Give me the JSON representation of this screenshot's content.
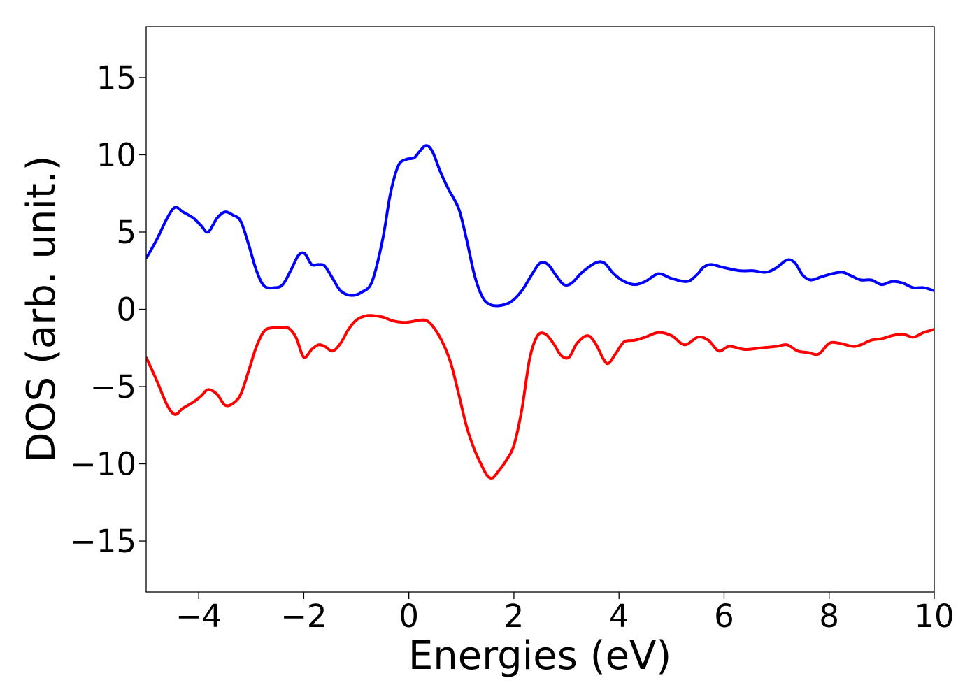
{
  "chart_data": {
    "type": "line",
    "xlabel": "Energies (eV)",
    "ylabel": "DOS (arb. unit.)",
    "xlim": [
      -5,
      10
    ],
    "ylim": [
      -18.3,
      18.3
    ],
    "xticks": [
      -4,
      -2,
      0,
      2,
      4,
      6,
      8,
      10
    ],
    "yticks": [
      -15,
      -10,
      -5,
      0,
      5,
      10,
      15
    ],
    "xtick_labels": [
      "−4",
      "−2",
      "0",
      "2",
      "4",
      "6",
      "8",
      "10"
    ],
    "ytick_labels": [
      "−15",
      "−10",
      "−5",
      "0",
      "5",
      "10",
      "15"
    ],
    "grid": false,
    "series": [
      {
        "color": "#0000ff",
        "x": [
          -5.0,
          -4.8,
          -4.6,
          -4.45,
          -4.3,
          -4.1,
          -3.95,
          -3.82,
          -3.65,
          -3.5,
          -3.35,
          -3.2,
          -3.05,
          -2.9,
          -2.75,
          -2.55,
          -2.4,
          -2.25,
          -2.1,
          -1.98,
          -1.85,
          -1.72,
          -1.6,
          -1.45,
          -1.3,
          -1.1,
          -0.9,
          -0.7,
          -0.5,
          -0.35,
          -0.2,
          -0.05,
          0.1,
          0.2,
          0.33,
          0.45,
          0.6,
          0.75,
          0.95,
          1.1,
          1.25,
          1.4,
          1.55,
          1.75,
          1.95,
          2.15,
          2.35,
          2.5,
          2.65,
          2.8,
          2.95,
          3.1,
          3.3,
          3.55,
          3.72,
          3.9,
          4.1,
          4.3,
          4.5,
          4.75,
          5.0,
          5.3,
          5.5,
          5.6,
          5.75,
          6.0,
          6.3,
          6.55,
          6.8,
          7.0,
          7.2,
          7.35,
          7.5,
          7.65,
          7.85,
          8.05,
          8.25,
          8.4,
          8.6,
          8.8,
          9.0,
          9.2,
          9.4,
          9.6,
          9.8,
          10.0
        ],
        "values": [
          3.3,
          4.5,
          5.9,
          6.6,
          6.3,
          5.9,
          5.4,
          5.0,
          5.9,
          6.3,
          6.1,
          5.7,
          4.2,
          2.5,
          1.5,
          1.4,
          1.6,
          2.5,
          3.5,
          3.6,
          2.9,
          2.9,
          2.8,
          2.0,
          1.2,
          0.9,
          1.1,
          1.8,
          4.5,
          7.5,
          9.3,
          9.7,
          9.8,
          10.2,
          10.6,
          10.2,
          8.9,
          7.8,
          6.5,
          4.5,
          2.2,
          0.8,
          0.3,
          0.25,
          0.5,
          1.2,
          2.3,
          3.0,
          2.9,
          2.2,
          1.6,
          1.7,
          2.4,
          3.0,
          3.0,
          2.3,
          1.8,
          1.6,
          1.8,
          2.3,
          2.0,
          1.8,
          2.3,
          2.7,
          2.9,
          2.7,
          2.5,
          2.5,
          2.4,
          2.7,
          3.2,
          3.0,
          2.2,
          1.9,
          2.1,
          2.3,
          2.4,
          2.2,
          1.9,
          1.9,
          1.6,
          1.8,
          1.7,
          1.4,
          1.4,
          1.2
        ]
      },
      {
        "color": "#ff0000",
        "x": [
          -5.0,
          -4.8,
          -4.6,
          -4.45,
          -4.3,
          -4.1,
          -3.95,
          -3.82,
          -3.65,
          -3.5,
          -3.35,
          -3.2,
          -3.05,
          -2.9,
          -2.75,
          -2.6,
          -2.45,
          -2.3,
          -2.15,
          -2.0,
          -1.85,
          -1.72,
          -1.6,
          -1.45,
          -1.3,
          -1.15,
          -1.0,
          -0.85,
          -0.7,
          -0.5,
          -0.3,
          -0.1,
          0.05,
          0.2,
          0.35,
          0.5,
          0.65,
          0.8,
          0.95,
          1.1,
          1.25,
          1.4,
          1.5,
          1.6,
          1.7,
          1.85,
          2.0,
          2.15,
          2.3,
          2.45,
          2.6,
          2.75,
          2.9,
          3.05,
          3.2,
          3.4,
          3.55,
          3.7,
          3.8,
          3.95,
          4.1,
          4.3,
          4.5,
          4.75,
          5.0,
          5.25,
          5.5,
          5.7,
          5.9,
          6.1,
          6.4,
          6.7,
          7.0,
          7.2,
          7.4,
          7.6,
          7.8,
          8.0,
          8.2,
          8.5,
          8.8,
          9.0,
          9.2,
          9.4,
          9.6,
          9.8,
          10.0
        ],
        "values": [
          -3.1,
          -4.6,
          -6.2,
          -6.8,
          -6.4,
          -6.0,
          -5.6,
          -5.2,
          -5.5,
          -6.2,
          -6.1,
          -5.5,
          -4.0,
          -2.4,
          -1.4,
          -1.2,
          -1.2,
          -1.2,
          -1.8,
          -3.1,
          -2.6,
          -2.3,
          -2.4,
          -2.7,
          -2.2,
          -1.3,
          -0.7,
          -0.45,
          -0.4,
          -0.5,
          -0.75,
          -0.85,
          -0.8,
          -0.7,
          -0.75,
          -1.3,
          -2.2,
          -3.5,
          -5.5,
          -7.6,
          -9.1,
          -10.2,
          -10.8,
          -10.9,
          -10.5,
          -9.8,
          -8.8,
          -6.5,
          -3.2,
          -1.7,
          -1.6,
          -2.2,
          -3.0,
          -3.1,
          -2.2,
          -1.7,
          -2.2,
          -3.2,
          -3.5,
          -2.8,
          -2.1,
          -2.0,
          -1.8,
          -1.5,
          -1.7,
          -2.3,
          -1.8,
          -2.0,
          -2.7,
          -2.4,
          -2.6,
          -2.5,
          -2.4,
          -2.3,
          -2.7,
          -2.8,
          -2.9,
          -2.2,
          -2.2,
          -2.4,
          -2.0,
          -1.9,
          -1.7,
          -1.6,
          -1.8,
          -1.5,
          -1.3
        ]
      }
    ]
  }
}
